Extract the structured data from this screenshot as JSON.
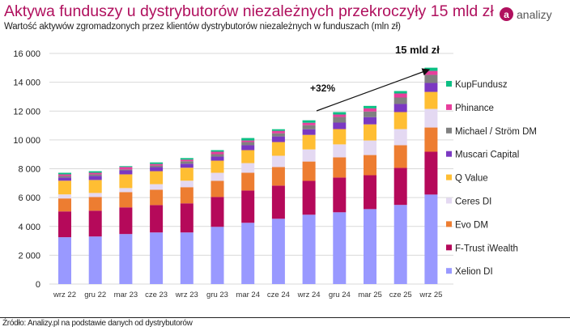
{
  "header": {
    "title": "Aktywa funduszy u dystrybutorów niezależnych przekroczyły 15 mld zł",
    "subtitle": "Wartość aktywów zgromadzonych przez klientów dystrybutorów niezależnych w funduszach (mln zł)",
    "logo_text": "analizy",
    "logo_letter": "a"
  },
  "footer": {
    "source": "Źródło: Analizy.pl na podstawie danych od dystrybutorów"
  },
  "colors": {
    "title": "#b0105e"
  },
  "chart_data": {
    "type": "bar",
    "stacked": true,
    "title": "Aktywa funduszy u dystrybutorów niezależnych przekroczyły 15 mld zł",
    "ylabel": "",
    "xlabel": "",
    "ylim": [
      0,
      16000
    ],
    "yticks": [
      0,
      2000,
      4000,
      6000,
      8000,
      10000,
      12000,
      14000,
      16000
    ],
    "ytick_labels": [
      "0",
      "2 000",
      "4 000",
      "6 000",
      "8 000",
      "10 000",
      "12 000",
      "14 000",
      "16 000"
    ],
    "grid": true,
    "legend_position": "right",
    "categories": [
      "wrz 22",
      "gru 22",
      "mar 23",
      "cze 23",
      "wrz 23",
      "gru 23",
      "mar 24",
      "cze 24",
      "wrz 24",
      "gru 24",
      "mar 25",
      "cze 25",
      "wrz 25"
    ],
    "series": [
      {
        "name": "Xelion DI",
        "color": "#9999ff",
        "values": [
          3250,
          3300,
          3470,
          3580,
          3580,
          3970,
          4250,
          4530,
          4810,
          4980,
          5200,
          5490,
          6210
        ]
      },
      {
        "name": "F-Trust iWealth",
        "color": "#b5095a",
        "values": [
          1790,
          1790,
          1850,
          1900,
          2020,
          2070,
          2240,
          2300,
          2350,
          2410,
          2350,
          2570,
          2970
        ]
      },
      {
        "name": "Evo DM",
        "color": "#ed7d31",
        "values": [
          900,
          950,
          1060,
          1060,
          1120,
          1120,
          1230,
          1290,
          1340,
          1400,
          1400,
          1570,
          1680
        ]
      },
      {
        "name": "Ceres DI",
        "color": "#e4d9f2",
        "values": [
          280,
          280,
          280,
          390,
          450,
          560,
          670,
          780,
          840,
          900,
          1010,
          1120,
          1290
        ]
      },
      {
        "name": "Q Value",
        "color": "#ffbe33",
        "values": [
          950,
          900,
          950,
          900,
          900,
          840,
          900,
          950,
          1010,
          1060,
          1120,
          1180,
          1180
        ]
      },
      {
        "name": "Muscari Capital",
        "color": "#7b38c2",
        "values": [
          220,
          280,
          280,
          280,
          280,
          280,
          340,
          390,
          390,
          450,
          500,
          560,
          620
        ]
      },
      {
        "name": "Michael / Ström DM",
        "color": "#808080",
        "values": [
          110,
          110,
          60,
          110,
          170,
          170,
          220,
          220,
          280,
          390,
          390,
          450,
          560
        ]
      },
      {
        "name": "Phinance",
        "color": "#e83e9c",
        "values": [
          110,
          110,
          170,
          110,
          110,
          170,
          110,
          170,
          170,
          170,
          220,
          280,
          280
        ]
      },
      {
        "name": "KupFundusz",
        "color": "#0cbf84",
        "values": [
          110,
          110,
          60,
          110,
          110,
          110,
          170,
          110,
          170,
          170,
          170,
          170,
          220
        ]
      }
    ],
    "annotations": [
      {
        "text": "+32%",
        "type": "arrow",
        "from_category": "wrz 24",
        "to_category": "wrz 25"
      },
      {
        "text": "15 mld zł",
        "category": "wrz 25"
      }
    ]
  }
}
